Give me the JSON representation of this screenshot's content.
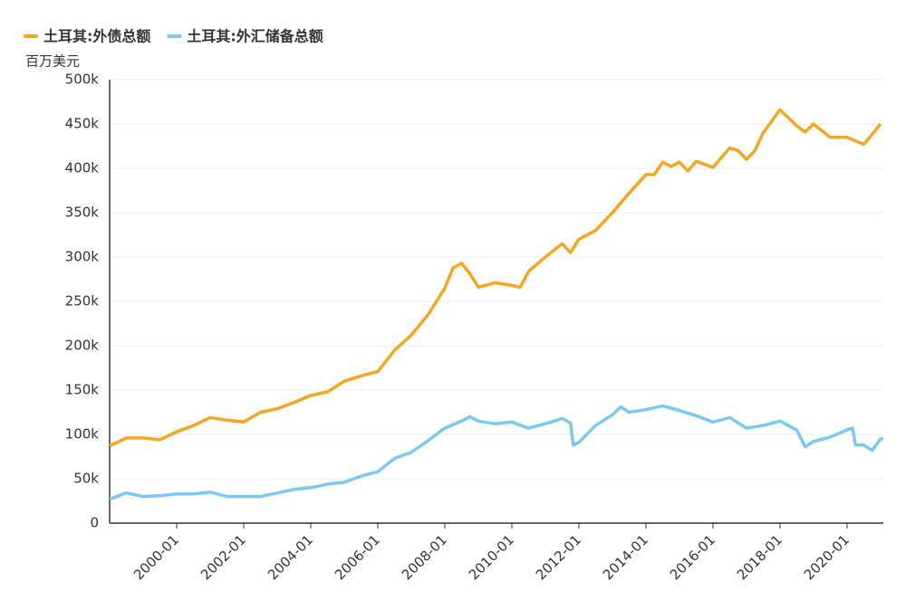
{
  "chart_data": {
    "type": "line",
    "y_label": "百万美元",
    "xlim": [
      "1998-01",
      "2021-02"
    ],
    "xticks": [
      "2000-01",
      "2002-01",
      "2004-01",
      "2006-01",
      "2008-01",
      "2010-01",
      "2012-01",
      "2014-01",
      "2016-01",
      "2018-01",
      "2020-01"
    ],
    "ylim": [
      0,
      500000
    ],
    "yticks": [
      0,
      {
        "value": 50000,
        "label": "50k"
      },
      {
        "value": 100000,
        "label": "100k"
      },
      {
        "value": 150000,
        "label": "150k"
      },
      {
        "value": 200000,
        "label": "200k"
      },
      {
        "value": 250000,
        "label": "250k"
      },
      {
        "value": 300000,
        "label": "300k"
      },
      {
        "value": 350000,
        "label": "350k"
      },
      {
        "value": 400000,
        "label": "400k"
      },
      {
        "value": 450000,
        "label": "450k"
      },
      {
        "value": 500000,
        "label": "500k"
      }
    ],
    "grid": true,
    "series": [
      {
        "name": "土耳其:外债总额",
        "color": "#f5a623",
        "x": [
          "1998-01",
          "1998-07",
          "1999-01",
          "1999-07",
          "2000-01",
          "2000-07",
          "2001-01",
          "2001-07",
          "2001-10",
          "2002-01",
          "2002-07",
          "2003-01",
          "2003-07",
          "2004-01",
          "2004-07",
          "2005-01",
          "2005-07",
          "2006-01",
          "2006-07",
          "2007-01",
          "2007-07",
          "2008-01",
          "2008-04",
          "2008-07",
          "2008-10",
          "2009-01",
          "2009-07",
          "2010-01",
          "2010-04",
          "2010-07",
          "2011-01",
          "2011-07",
          "2011-10",
          "2012-01",
          "2012-07",
          "2013-01",
          "2013-07",
          "2014-01",
          "2014-04",
          "2014-07",
          "2014-10",
          "2015-01",
          "2015-04",
          "2015-07",
          "2016-01",
          "2016-07",
          "2016-10",
          "2017-01",
          "2017-04",
          "2017-07",
          "2018-01",
          "2018-07",
          "2018-10",
          "2019-01",
          "2019-07",
          "2020-01",
          "2020-07",
          "2021-01"
        ],
        "values": [
          87000,
          96000,
          96000,
          94000,
          103000,
          110000,
          119000,
          116000,
          115000,
          114000,
          125000,
          129000,
          136000,
          144000,
          148000,
          160000,
          166000,
          171000,
          195000,
          212000,
          235000,
          265000,
          288000,
          293000,
          281000,
          266000,
          271000,
          268000,
          266000,
          284000,
          300000,
          315000,
          305000,
          320000,
          330000,
          350000,
          372000,
          393000,
          393000,
          407000,
          402000,
          407000,
          397000,
          408000,
          401000,
          423000,
          420000,
          410000,
          420000,
          440000,
          466000,
          448000,
          441000,
          450000,
          435000,
          435000,
          427000,
          450000
        ]
      },
      {
        "name": "土耳其:外汇储备总额",
        "color": "#7cc8f2",
        "x": [
          "1998-01",
          "1998-07",
          "1999-01",
          "1999-07",
          "2000-01",
          "2000-07",
          "2001-01",
          "2001-07",
          "2002-01",
          "2002-07",
          "2003-01",
          "2003-07",
          "2004-01",
          "2004-07",
          "2005-01",
          "2005-07",
          "2006-01",
          "2006-07",
          "2007-01",
          "2007-07",
          "2008-01",
          "2008-07",
          "2008-10",
          "2009-01",
          "2009-07",
          "2010-01",
          "2010-07",
          "2011-01",
          "2011-07",
          "2011-10",
          "2011-11",
          "2012-01",
          "2012-07",
          "2013-01",
          "2013-04",
          "2013-07",
          "2014-01",
          "2014-07",
          "2015-01",
          "2015-07",
          "2016-01",
          "2016-07",
          "2017-01",
          "2017-07",
          "2018-01",
          "2018-07",
          "2018-10",
          "2019-01",
          "2019-07",
          "2020-01",
          "2020-03",
          "2020-04",
          "2020-07",
          "2020-10",
          "2021-01",
          "2021-02"
        ],
        "values": [
          27000,
          34000,
          30000,
          31000,
          33000,
          33000,
          35000,
          30000,
          30000,
          30000,
          34000,
          38000,
          40000,
          44000,
          46000,
          53000,
          58000,
          73000,
          80000,
          93000,
          107000,
          115000,
          120000,
          115000,
          112000,
          114000,
          107000,
          112000,
          118000,
          113000,
          88000,
          91000,
          110000,
          122000,
          131000,
          125000,
          128000,
          132000,
          127000,
          121000,
          114000,
          119000,
          107000,
          110000,
          115000,
          105000,
          86000,
          92000,
          97000,
          105000,
          107000,
          88000,
          88000,
          82000,
          95000,
          95000
        ]
      }
    ]
  }
}
